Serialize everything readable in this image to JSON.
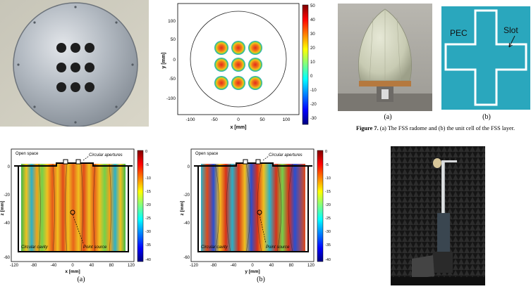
{
  "colors": {
    "fss_cyan": "#2aa7bd",
    "chamber_dark": "#1b1b1b",
    "radome_shell": "#d6d8c2",
    "plate_metal": "#a9b0b8"
  },
  "colorbar_top": {
    "ticks": [
      "50",
      "40",
      "30",
      "20",
      "10",
      "0",
      "-10",
      "-20",
      "-30"
    ]
  },
  "colorbar_bottom": {
    "ticks": [
      "0",
      "-5",
      "-10",
      "-15",
      "-20",
      "-25",
      "-30",
      "-35",
      "-40"
    ]
  },
  "top_plot": {
    "xlabel": "x [mm]",
    "ylabel": "y [mm]",
    "xticks": [
      "-100",
      "-50",
      "0",
      "50",
      "100"
    ],
    "yticks": [
      "100",
      "50",
      "0",
      "-50",
      "-100"
    ]
  },
  "field_a": {
    "xlabel": "x [mm]",
    "ylabel": "z [mm]",
    "xticks": [
      "-120",
      "-80",
      "-40",
      "0",
      "40",
      "80",
      "120"
    ],
    "yticks": [
      "0",
      "-20",
      "-40",
      "-60"
    ],
    "open_space": "Open space",
    "apertures": "Circular apertures",
    "cavity": "Circular cavity",
    "source": "Point source",
    "caption": "(a)"
  },
  "field_b": {
    "xlabel": "y [mm]",
    "ylabel": "z [mm]",
    "xticks": [
      "-120",
      "-80",
      "-40",
      "0",
      "40",
      "80",
      "120"
    ],
    "yticks": [
      "0",
      "-20",
      "-40",
      "-60"
    ],
    "open_space": "Open space",
    "apertures": "Circular apertures",
    "cavity": "Circular cavity",
    "source": "Point source",
    "caption": "(b)"
  },
  "fss": {
    "pec_label": "PEC",
    "slot_label": "Slot",
    "caption_a": "(a)",
    "caption_b": "(b)",
    "figure_caption_bold": "Figure 7.",
    "figure_caption_rest": " (a) The FSS radome and (b) the unit cell of the FSS layer."
  }
}
